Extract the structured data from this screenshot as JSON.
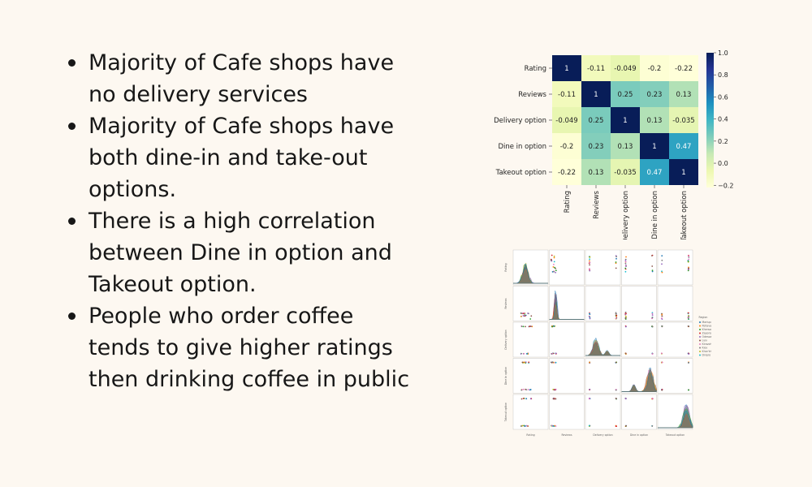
{
  "bullets": [
    "Majority of Cafe shops have no delivery services",
    "Majority of Cafe shops have both dine-in and take-out options.",
    "There is a high correlation between Dine in option and Takeout option.",
    "People who order coffee tends to give higher ratings then drinking coffee in public"
  ],
  "colors": {
    "background": "#fdf8f1",
    "text": "#171717",
    "colormap": "YlGnBu"
  },
  "chart_data": [
    {
      "type": "heatmap",
      "title": "",
      "labels": [
        "Rating",
        "Reviews",
        "Delivery option",
        "Dine in option",
        "Takeout option"
      ],
      "values": [
        [
          1,
          -0.11,
          -0.049,
          -0.2,
          -0.22
        ],
        [
          -0.11,
          1,
          0.25,
          0.23,
          0.13
        ],
        [
          -0.049,
          0.25,
          1,
          0.13,
          -0.035
        ],
        [
          -0.2,
          0.23,
          0.13,
          1,
          0.47
        ],
        [
          -0.22,
          0.13,
          -0.035,
          0.47,
          1
        ]
      ],
      "value_labels": [
        [
          "1",
          "-0.11",
          "-0.049",
          "-0.2",
          "-0.22"
        ],
        [
          "-0.11",
          "1",
          "0.25",
          "0.23",
          "0.13"
        ],
        [
          "-0.049",
          "0.25",
          "1",
          "0.13",
          "-0.035"
        ],
        [
          "-0.2",
          "0.23",
          "0.13",
          "1",
          "0.47"
        ],
        [
          "-0.22",
          "0.13",
          "-0.035",
          "0.47",
          "1"
        ]
      ],
      "colorbar": {
        "range": [
          -0.22,
          1.0
        ],
        "ticks": [
          "1.0",
          "0.8",
          "0.6",
          "0.4",
          "0.2",
          "0.0",
          "−0.2"
        ]
      }
    },
    {
      "type": "scatter",
      "variables": [
        "Rating",
        "Reviews",
        "Delivery option",
        "Dine in option",
        "Takeout option"
      ],
      "diagonal": "kde",
      "legend_title": "Region",
      "legend_placement": "right",
      "hue_levels": [
        "Mariupol",
        "Poltava",
        "Kherson",
        "Zaporozhe",
        "Odessa",
        "Lviv",
        "Kirovohrad",
        "Kiev",
        "Khar'kiv",
        "Dnipro"
      ],
      "hue_colors": [
        "#1f77b4",
        "#ff7f0e",
        "#2ca02c",
        "#d62728",
        "#9467bd",
        "#8c564b",
        "#e377c2",
        "#7f7f7f",
        "#bcbd22",
        "#17becf"
      ]
    }
  ]
}
